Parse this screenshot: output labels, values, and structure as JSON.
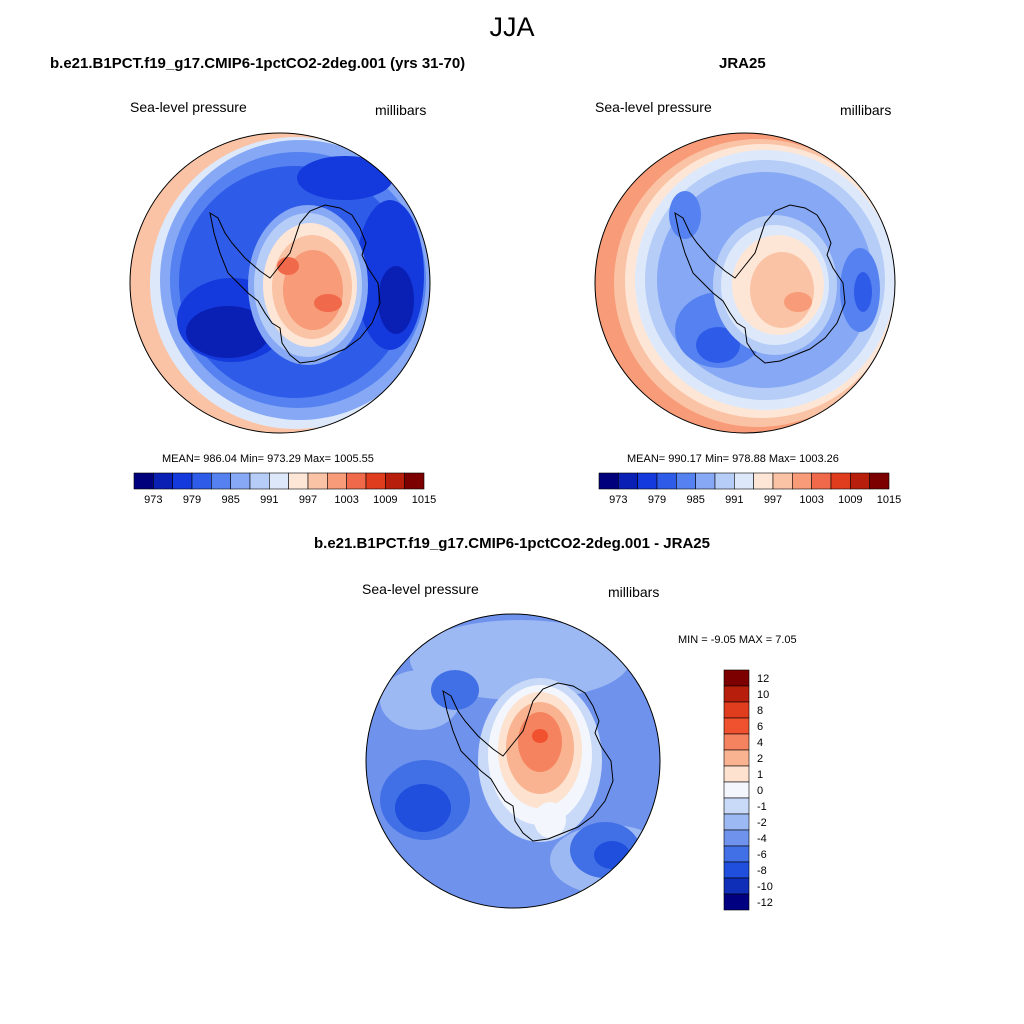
{
  "season": "JJA",
  "panels": [
    {
      "title": "b.e21.B1PCT.f19_g17.CMIP6-1pctCO2-2deg.001 (yrs 31-70)",
      "field_label": "Sea-level pressure",
      "units_label": "millibars",
      "stats_text": "MEAN= 986.04  Min= 973.29  Max= 1005.55",
      "colorbar_ticks": [
        "973",
        "979",
        "985",
        "991",
        "997",
        "1003",
        "1009",
        "1015"
      ]
    },
    {
      "title": "JRA25",
      "field_label": "Sea-level pressure",
      "units_label": "millibars",
      "stats_text": "MEAN= 990.17  Min= 978.88  Max= 1003.26",
      "colorbar_ticks": [
        "973",
        "979",
        "985",
        "991",
        "997",
        "1003",
        "1009",
        "1015"
      ]
    },
    {
      "title": "b.e21.B1PCT.f19_g17.CMIP6-1pctCO2-2deg.001 - JRA25",
      "field_label": "Sea-level pressure",
      "units_label": "millibars",
      "stats_text": "MIN =  -9.05 MAX =   7.05",
      "colorbar_ticks": [
        "12",
        "10",
        "8",
        "6",
        "4",
        "2",
        "1",
        "0",
        "-1",
        "-2",
        "-4",
        "-6",
        "-8",
        "-10",
        "-12"
      ]
    }
  ],
  "colors": {
    "abs_palette": [
      "#00007d",
      "#0a20b4",
      "#1439dc",
      "#2e5be8",
      "#5582f0",
      "#86a8f5",
      "#b6cdf8",
      "#dde9fb",
      "#fde6d6",
      "#fbc3a5",
      "#f79b78",
      "#f0694a",
      "#e03c1e",
      "#b81e0c",
      "#7d0000"
    ],
    "diff_palette": [
      "#7d0000",
      "#b81e0c",
      "#e03c1e",
      "#f0512f",
      "#f5835f",
      "#fab390",
      "#fde2cf",
      "#f3f6fd",
      "#c9d9f8",
      "#9db9f3",
      "#6f93ed",
      "#4170e6",
      "#1f4fdc",
      "#0f2fb8",
      "#000080"
    ],
    "coastline": "#000000"
  },
  "chart_data": [
    {
      "type": "heatmap",
      "projection": "south-polar-stereographic",
      "title": "b.e21.B1PCT.f19_g17.CMIP6-1pctCO2-2deg.001 (yrs 31-70)",
      "variable": "Sea-level pressure",
      "units": "millibars",
      "mean": 986.04,
      "min": 973.29,
      "max": 1005.55,
      "contour_levels": [
        973,
        976,
        979,
        982,
        985,
        988,
        991,
        994,
        997,
        1000,
        1003,
        1006,
        1009,
        1012,
        1015
      ]
    },
    {
      "type": "heatmap",
      "projection": "south-polar-stereographic",
      "title": "JRA25",
      "variable": "Sea-level pressure",
      "units": "millibars",
      "mean": 990.17,
      "min": 978.88,
      "max": 1003.26,
      "contour_levels": [
        973,
        976,
        979,
        982,
        985,
        988,
        991,
        994,
        997,
        1000,
        1003,
        1006,
        1009,
        1012,
        1015
      ]
    },
    {
      "type": "heatmap",
      "projection": "south-polar-stereographic",
      "title": "b.e21.B1PCT.f19_g17.CMIP6-1pctCO2-2deg.001 - JRA25",
      "variable": "Sea-level pressure",
      "units": "millibars",
      "min": -9.05,
      "max": 7.05,
      "contour_levels": [
        -12,
        -10,
        -8,
        -6,
        -4,
        -2,
        -1,
        0,
        1,
        2,
        4,
        6,
        8,
        10,
        12
      ]
    }
  ]
}
